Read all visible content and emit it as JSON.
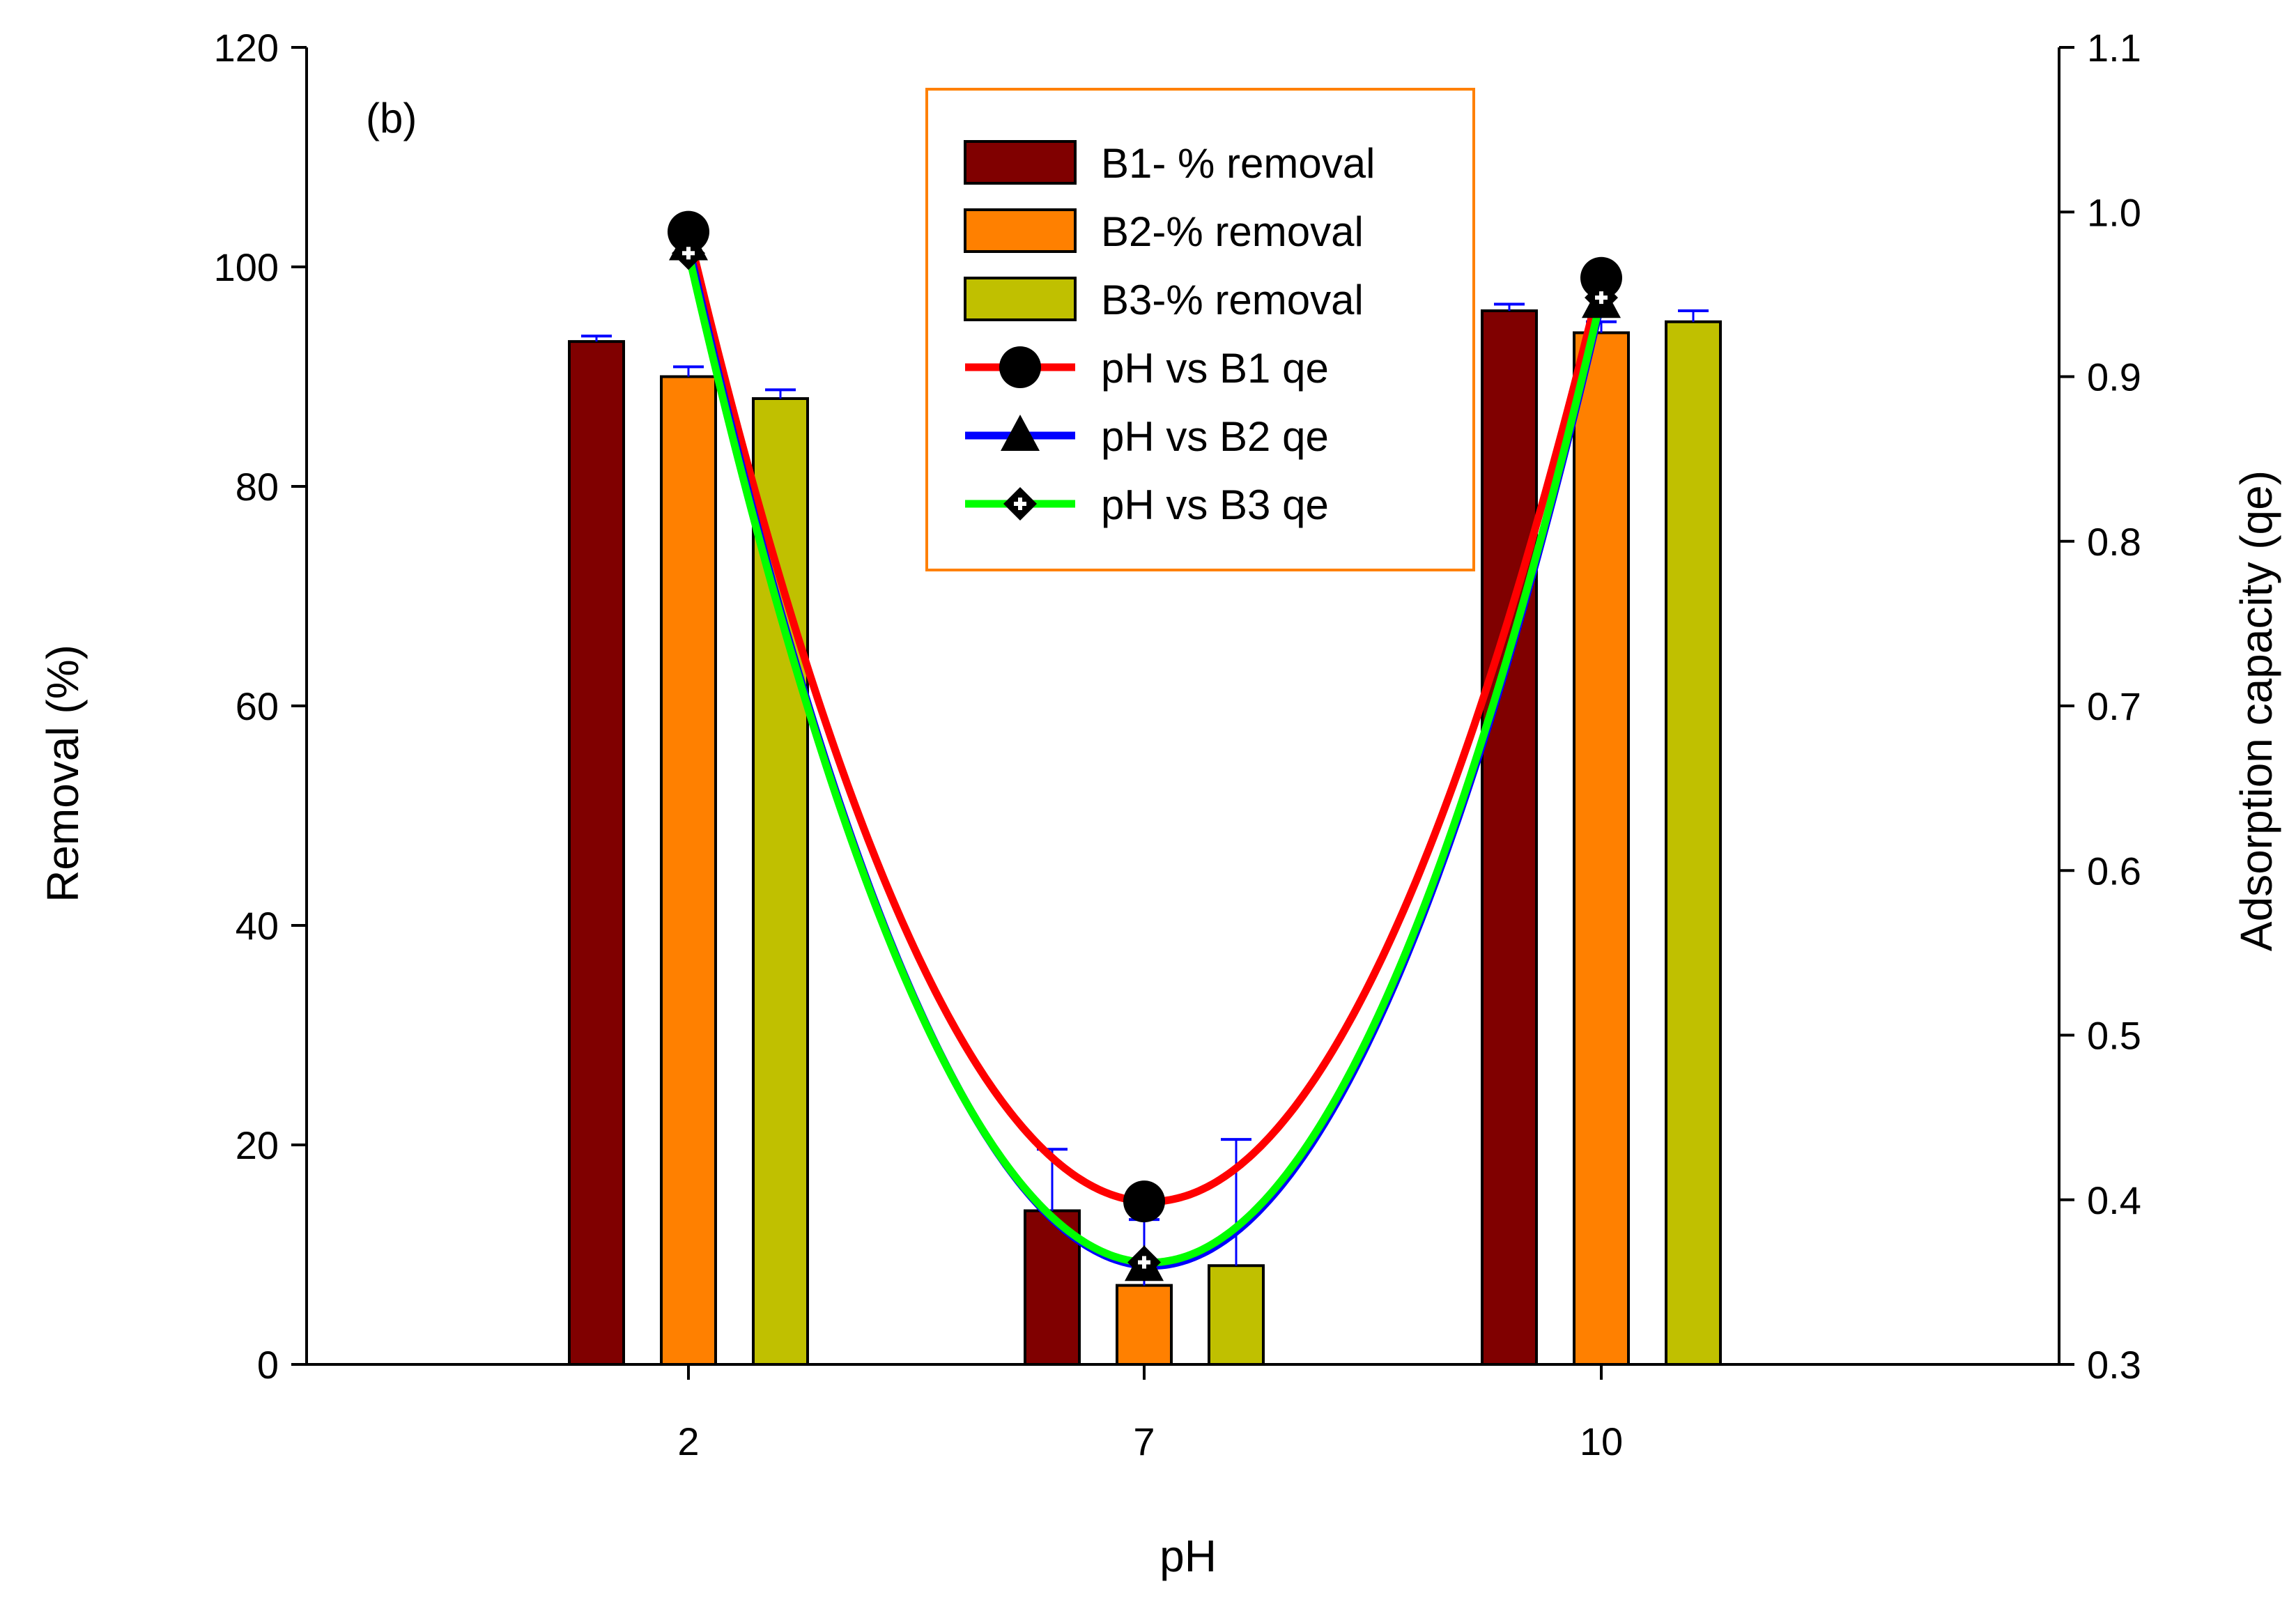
{
  "chart_data": {
    "type": "bar",
    "panel_label": "(b)",
    "xlabel": "pH",
    "ylabel_left": "Removal (%)",
    "ylabel_right": "Adsorption capacity (qe)",
    "categories": [
      "2",
      "7",
      "10"
    ],
    "ylim_left": [
      0,
      120
    ],
    "yticks_left": [
      "0",
      "20",
      "40",
      "60",
      "80",
      "100",
      "120"
    ],
    "ylim_right": [
      0.3,
      1.1
    ],
    "yticks_right": [
      "0.3",
      "0.4",
      "0.5",
      "0.6",
      "0.7",
      "0.8",
      "0.9",
      "1.0",
      "1.1"
    ],
    "bar_series": [
      {
        "name": "B1- % removal",
        "color": "#800000",
        "values": [
          93.2,
          14.0,
          96.0
        ],
        "errors": [
          0.5,
          5.6,
          0.6
        ]
      },
      {
        "name": "B2-% removal",
        "color": "#ff8000",
        "values": [
          90.0,
          7.2,
          94.0
        ],
        "errors": [
          0.9,
          6.0,
          1.0
        ]
      },
      {
        "name": "B3-% removal",
        "color": "#c0c000",
        "values": [
          88.0,
          9.0,
          95.0
        ],
        "errors": [
          0.8,
          11.5,
          1.0
        ]
      }
    ],
    "line_series": [
      {
        "name": "pH vs B1 qe",
        "color": "#ff0000",
        "marker": "circle",
        "values": [
          0.988,
          0.399,
          0.96
        ]
      },
      {
        "name": "pH vs B2 qe",
        "color": "#0000ff",
        "marker": "triangle",
        "values": [
          0.98,
          0.36,
          0.945
        ]
      },
      {
        "name": "pH vs B3 qe",
        "color": "#00ff00",
        "marker": "diamond",
        "values": [
          0.975,
          0.362,
          0.948
        ]
      }
    ],
    "legend_position": "top-center",
    "legend_border_color": "#ff8000",
    "grid": false
  }
}
